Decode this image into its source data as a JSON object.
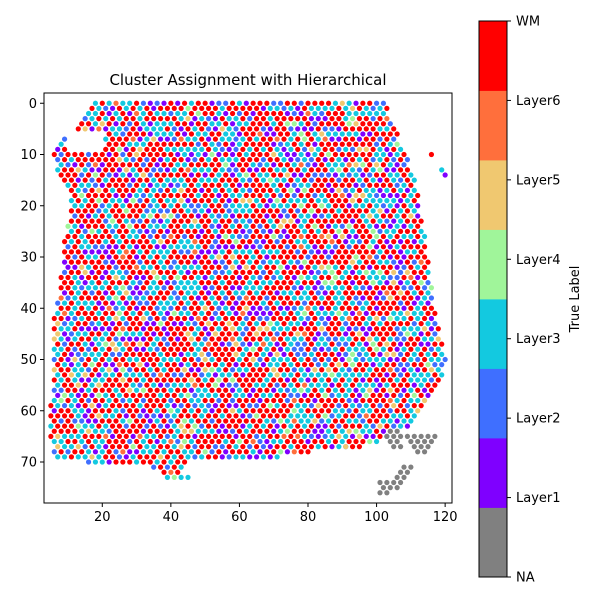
{
  "chart_data": {
    "type": "scatter",
    "title": "Cluster Assignment with Hierarchical",
    "xlabel": "",
    "ylabel": "",
    "xlim": [
      3,
      122
    ],
    "ylim": [
      78,
      -2
    ],
    "y_inverted": true,
    "x_ticks": [
      20,
      40,
      60,
      80,
      100,
      120
    ],
    "y_ticks": [
      0,
      10,
      20,
      30,
      40,
      50,
      60,
      70
    ],
    "grid": false,
    "marker": "hexagonal spots",
    "colorbar": {
      "label": "True Label",
      "categories": [
        "NA",
        "Layer1",
        "Layer2",
        "Layer3",
        "Layer4",
        "Layer5",
        "Layer6",
        "WM"
      ],
      "colors": [
        "#808080",
        "#7f00ff",
        "#3f6fff",
        "#13c9e0",
        "#a0f59a",
        "#f0c870",
        "#ff6f3c",
        "#ff0000"
      ]
    },
    "cluster_proportions": {
      "NA": 0.01,
      "Layer1": 0.12,
      "Layer2": 0.1,
      "Layer3": 0.25,
      "Layer4": 0.03,
      "Layer5": 0.03,
      "Layer6": 0.02,
      "WM": 0.44
    },
    "row_extents": [
      [
        0,
        18,
        102
      ],
      [
        1,
        17,
        103
      ],
      [
        2,
        16,
        103
      ],
      [
        3,
        15,
        104
      ],
      [
        4,
        13,
        104
      ],
      [
        5,
        12,
        105
      ],
      [
        6,
        10,
        106
      ],
      [
        7,
        9,
        106
      ],
      [
        8,
        8,
        107
      ],
      [
        9,
        7,
        107
      ],
      [
        10,
        6,
        108
      ],
      [
        11,
        6,
        109
      ],
      [
        12,
        7,
        109
      ],
      [
        13,
        7,
        110
      ],
      [
        14,
        8,
        110
      ],
      [
        15,
        9,
        111
      ],
      [
        16,
        10,
        111
      ],
      [
        17,
        10,
        111
      ],
      [
        18,
        11,
        112
      ],
      [
        19,
        11,
        112
      ],
      [
        20,
        11,
        112
      ],
      [
        21,
        11,
        112
      ],
      [
        22,
        11,
        113
      ],
      [
        23,
        11,
        113
      ],
      [
        24,
        10,
        113
      ],
      [
        25,
        10,
        113
      ],
      [
        26,
        10,
        114
      ],
      [
        27,
        9,
        114
      ],
      [
        28,
        9,
        114
      ],
      [
        29,
        9,
        114
      ],
      [
        30,
        9,
        114
      ],
      [
        31,
        9,
        115
      ],
      [
        32,
        9,
        115
      ],
      [
        33,
        9,
        115
      ],
      [
        34,
        8,
        115
      ],
      [
        35,
        8,
        115
      ],
      [
        36,
        8,
        116
      ],
      [
        37,
        8,
        116
      ],
      [
        38,
        8,
        116
      ],
      [
        39,
        7,
        116
      ],
      [
        40,
        7,
        117
      ],
      [
        41,
        7,
        117
      ],
      [
        42,
        6,
        117
      ],
      [
        43,
        6,
        117
      ],
      [
        44,
        6,
        118
      ],
      [
        45,
        6,
        118
      ],
      [
        46,
        6,
        118
      ],
      [
        47,
        6,
        119
      ],
      [
        48,
        6,
        119
      ],
      [
        49,
        6,
        119
      ],
      [
        50,
        6,
        120
      ],
      [
        51,
        6,
        120
      ],
      [
        52,
        6,
        119
      ],
      [
        53,
        6,
        119
      ],
      [
        54,
        6,
        118
      ],
      [
        55,
        6,
        117
      ],
      [
        56,
        6,
        117
      ],
      [
        57,
        6,
        116
      ],
      [
        58,
        5,
        115
      ],
      [
        59,
        5,
        114
      ],
      [
        60,
        5,
        113
      ],
      [
        61,
        5,
        112
      ],
      [
        62,
        5,
        111
      ],
      [
        63,
        5,
        110
      ],
      [
        64,
        5,
        105
      ],
      [
        65,
        5,
        103
      ],
      [
        66,
        5,
        100
      ],
      [
        67,
        6,
        96
      ],
      [
        68,
        6,
        80
      ],
      [
        69,
        6,
        72
      ],
      [
        70,
        16,
        44
      ],
      [
        71,
        35,
        43
      ],
      [
        72,
        37,
        43
      ],
      [
        73,
        39,
        45
      ]
    ],
    "na_points": [
      [
        104,
        64
      ],
      [
        106,
        64
      ],
      [
        103,
        65
      ],
      [
        105,
        65
      ],
      [
        107,
        65
      ],
      [
        109,
        65
      ],
      [
        111,
        65
      ],
      [
        113,
        65
      ],
      [
        115,
        65
      ],
      [
        117,
        65
      ],
      [
        104,
        66
      ],
      [
        106,
        66
      ],
      [
        110,
        66
      ],
      [
        112,
        66
      ],
      [
        114,
        66
      ],
      [
        116,
        66
      ],
      [
        105,
        67
      ],
      [
        107,
        67
      ],
      [
        111,
        67
      ],
      [
        113,
        67
      ],
      [
        115,
        67
      ],
      [
        112,
        68
      ],
      [
        114,
        68
      ],
      [
        108,
        71
      ],
      [
        110,
        71
      ],
      [
        107,
        72
      ],
      [
        109,
        72
      ],
      [
        106,
        73
      ],
      [
        108,
        73
      ],
      [
        101,
        74
      ],
      [
        103,
        74
      ],
      [
        105,
        74
      ],
      [
        107,
        74
      ],
      [
        102,
        75
      ],
      [
        104,
        75
      ],
      [
        106,
        75
      ],
      [
        101,
        76
      ],
      [
        103,
        76
      ]
    ],
    "isolated_points": [
      {
        "x": 116,
        "y": 10,
        "label": "WM"
      },
      {
        "x": 119,
        "y": 13,
        "label": "Layer3"
      },
      {
        "x": 120,
        "y": 14,
        "label": "Layer1"
      },
      {
        "x": 91,
        "y": 67,
        "label": "Layer5"
      }
    ],
    "gap_region": {
      "x_range": [
        10,
        20
      ],
      "y_range": [
        6,
        9
      ]
    },
    "colors_style": {
      "frame": "#000000",
      "background": "#ffffff"
    }
  }
}
